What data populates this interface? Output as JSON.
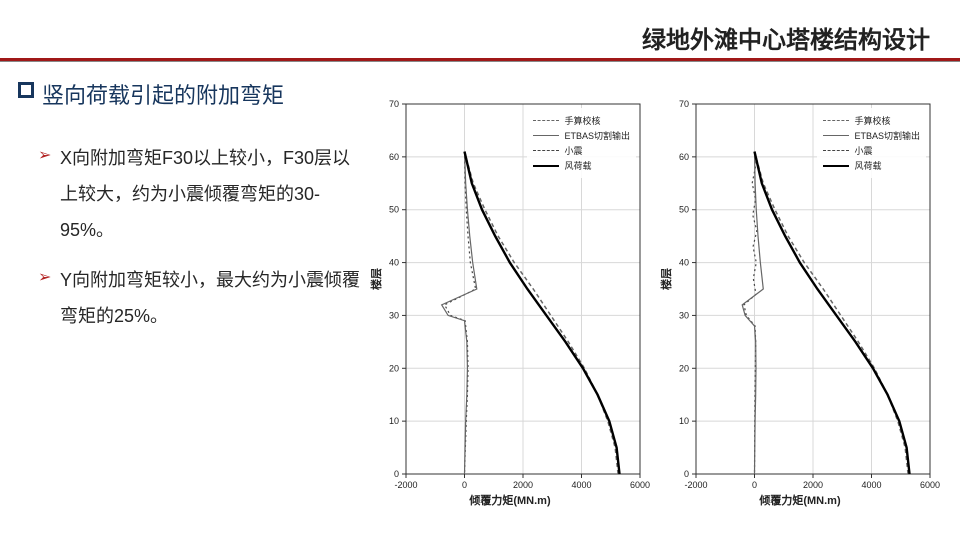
{
  "header": {
    "title": "绿地外滩中心塔楼结构设计"
  },
  "section": {
    "title": "竖向荷载引起的附加弯矩"
  },
  "bullets": {
    "items": [
      "X向附加弯矩F30以上较小，F30层以上较大，约为小震倾覆弯矩的30-95%。",
      "Y向附加弯矩较小，最大约为小震倾覆弯矩的25%。"
    ]
  },
  "legend": {
    "items": [
      {
        "label": "手算校核",
        "color": "#666666",
        "dash": "4,3",
        "width": 1.5
      },
      {
        "label": "ETBAS切割输出",
        "color": "#666666",
        "dash": "",
        "width": 1.2
      },
      {
        "label": "小震",
        "color": "#444444",
        "dash": "2,3",
        "width": 1.2
      },
      {
        "label": "风荷载",
        "color": "#000000",
        "dash": "",
        "width": 2.4
      }
    ]
  },
  "axes": {
    "xlabel": "倾覆力矩(MN.m)",
    "ylabel": "楼层",
    "xlim": [
      -2000,
      6000
    ],
    "xticks": [
      -2000,
      0,
      2000,
      4000,
      6000
    ],
    "ylim": [
      0,
      70
    ],
    "yticks": [
      0,
      10,
      20,
      30,
      40,
      50,
      60,
      70
    ],
    "grid_color": "#d8d8d8",
    "axis_color": "#333333",
    "background": "#ffffff",
    "tick_fontsize": 9,
    "label_fontsize": 11
  },
  "chart_left": {
    "series": [
      {
        "legend_idx": 2,
        "points": [
          [
            0,
            61
          ],
          [
            20,
            55
          ],
          [
            60,
            50
          ],
          [
            120,
            45
          ],
          [
            200,
            40
          ],
          [
            380,
            35
          ],
          [
            -680,
            32
          ],
          [
            -480,
            30
          ],
          [
            20,
            29
          ],
          [
            100,
            25
          ],
          [
            120,
            20
          ],
          [
            100,
            15
          ],
          [
            60,
            10
          ],
          [
            30,
            5
          ],
          [
            0,
            0
          ]
        ]
      },
      {
        "legend_idx": 1,
        "points": [
          [
            0,
            61
          ],
          [
            40,
            55
          ],
          [
            100,
            50
          ],
          [
            180,
            45
          ],
          [
            280,
            40
          ],
          [
            420,
            35
          ],
          [
            -780,
            32
          ],
          [
            -560,
            30
          ],
          [
            0,
            29
          ],
          [
            80,
            25
          ],
          [
            100,
            20
          ],
          [
            80,
            15
          ],
          [
            40,
            10
          ],
          [
            20,
            5
          ],
          [
            0,
            0
          ]
        ]
      },
      {
        "legend_idx": 0,
        "points": [
          [
            0,
            61
          ],
          [
            300,
            55
          ],
          [
            700,
            50
          ],
          [
            1150,
            45
          ],
          [
            1700,
            40
          ],
          [
            2350,
            35
          ],
          [
            2950,
            30
          ],
          [
            3550,
            25
          ],
          [
            4100,
            20
          ],
          [
            4550,
            15
          ],
          [
            4900,
            10
          ],
          [
            5150,
            5
          ],
          [
            5250,
            0
          ]
        ]
      },
      {
        "legend_idx": 3,
        "points": [
          [
            0,
            61
          ],
          [
            250,
            55
          ],
          [
            600,
            50
          ],
          [
            1050,
            45
          ],
          [
            1550,
            40
          ],
          [
            2150,
            35
          ],
          [
            2800,
            30
          ],
          [
            3450,
            25
          ],
          [
            4050,
            20
          ],
          [
            4550,
            15
          ],
          [
            4950,
            10
          ],
          [
            5200,
            5
          ],
          [
            5300,
            0
          ]
        ]
      }
    ]
  },
  "chart_right": {
    "series": [
      {
        "legend_idx": 2,
        "points": [
          [
            0,
            61
          ],
          [
            30,
            58
          ],
          [
            -80,
            55
          ],
          [
            40,
            52
          ],
          [
            -60,
            49
          ],
          [
            80,
            46
          ],
          [
            -50,
            43
          ],
          [
            60,
            40
          ],
          [
            -40,
            37
          ],
          [
            50,
            34
          ],
          [
            -360,
            32
          ],
          [
            -280,
            30
          ],
          [
            20,
            28
          ],
          [
            40,
            25
          ],
          [
            30,
            20
          ],
          [
            20,
            15
          ],
          [
            10,
            10
          ],
          [
            5,
            5
          ],
          [
            0,
            0
          ]
        ]
      },
      {
        "legend_idx": 1,
        "points": [
          [
            0,
            61
          ],
          [
            20,
            55
          ],
          [
            60,
            50
          ],
          [
            120,
            45
          ],
          [
            200,
            40
          ],
          [
            300,
            35
          ],
          [
            -420,
            32
          ],
          [
            -320,
            30
          ],
          [
            0,
            28
          ],
          [
            40,
            25
          ],
          [
            50,
            20
          ],
          [
            40,
            15
          ],
          [
            20,
            10
          ],
          [
            10,
            5
          ],
          [
            0,
            0
          ]
        ]
      },
      {
        "legend_idx": 0,
        "points": [
          [
            0,
            61
          ],
          [
            300,
            55
          ],
          [
            700,
            50
          ],
          [
            1150,
            45
          ],
          [
            1700,
            40
          ],
          [
            2350,
            35
          ],
          [
            2950,
            30
          ],
          [
            3550,
            25
          ],
          [
            4100,
            20
          ],
          [
            4550,
            15
          ],
          [
            4900,
            10
          ],
          [
            5150,
            5
          ],
          [
            5250,
            0
          ]
        ]
      },
      {
        "legend_idx": 3,
        "points": [
          [
            0,
            61
          ],
          [
            250,
            55
          ],
          [
            600,
            50
          ],
          [
            1050,
            45
          ],
          [
            1550,
            40
          ],
          [
            2150,
            35
          ],
          [
            2800,
            30
          ],
          [
            3450,
            25
          ],
          [
            4050,
            20
          ],
          [
            4550,
            15
          ],
          [
            4950,
            10
          ],
          [
            5200,
            5
          ],
          [
            5300,
            0
          ]
        ]
      }
    ]
  }
}
